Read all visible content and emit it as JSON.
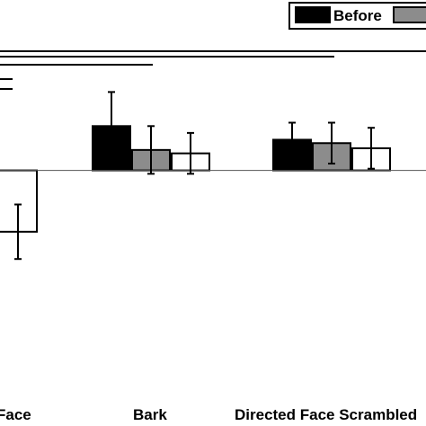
{
  "chart_data": {
    "type": "bar",
    "categories": [
      "Face",
      "Bark",
      "Directed Face Scrambled"
    ],
    "series": [
      {
        "name": "Before",
        "color": "#000000",
        "values": [
          null,
          1.3,
          0.9
        ],
        "errors": [
          null,
          1.0,
          0.5
        ]
      },
      {
        "name": "",
        "color": "#8c8c8c",
        "values": [
          null,
          0.6,
          0.8
        ],
        "errors": [
          null,
          0.7,
          0.6
        ]
      },
      {
        "name": "",
        "color": "#ffffff",
        "values": [
          -1.8,
          0.5,
          0.65
        ],
        "errors": [
          0.8,
          0.6,
          0.6
        ]
      }
    ],
    "baseline": 0,
    "ylim": [
      -7.5,
      5.0
    ],
    "legend_position": "top-right",
    "significance_lines": 4
  }
}
